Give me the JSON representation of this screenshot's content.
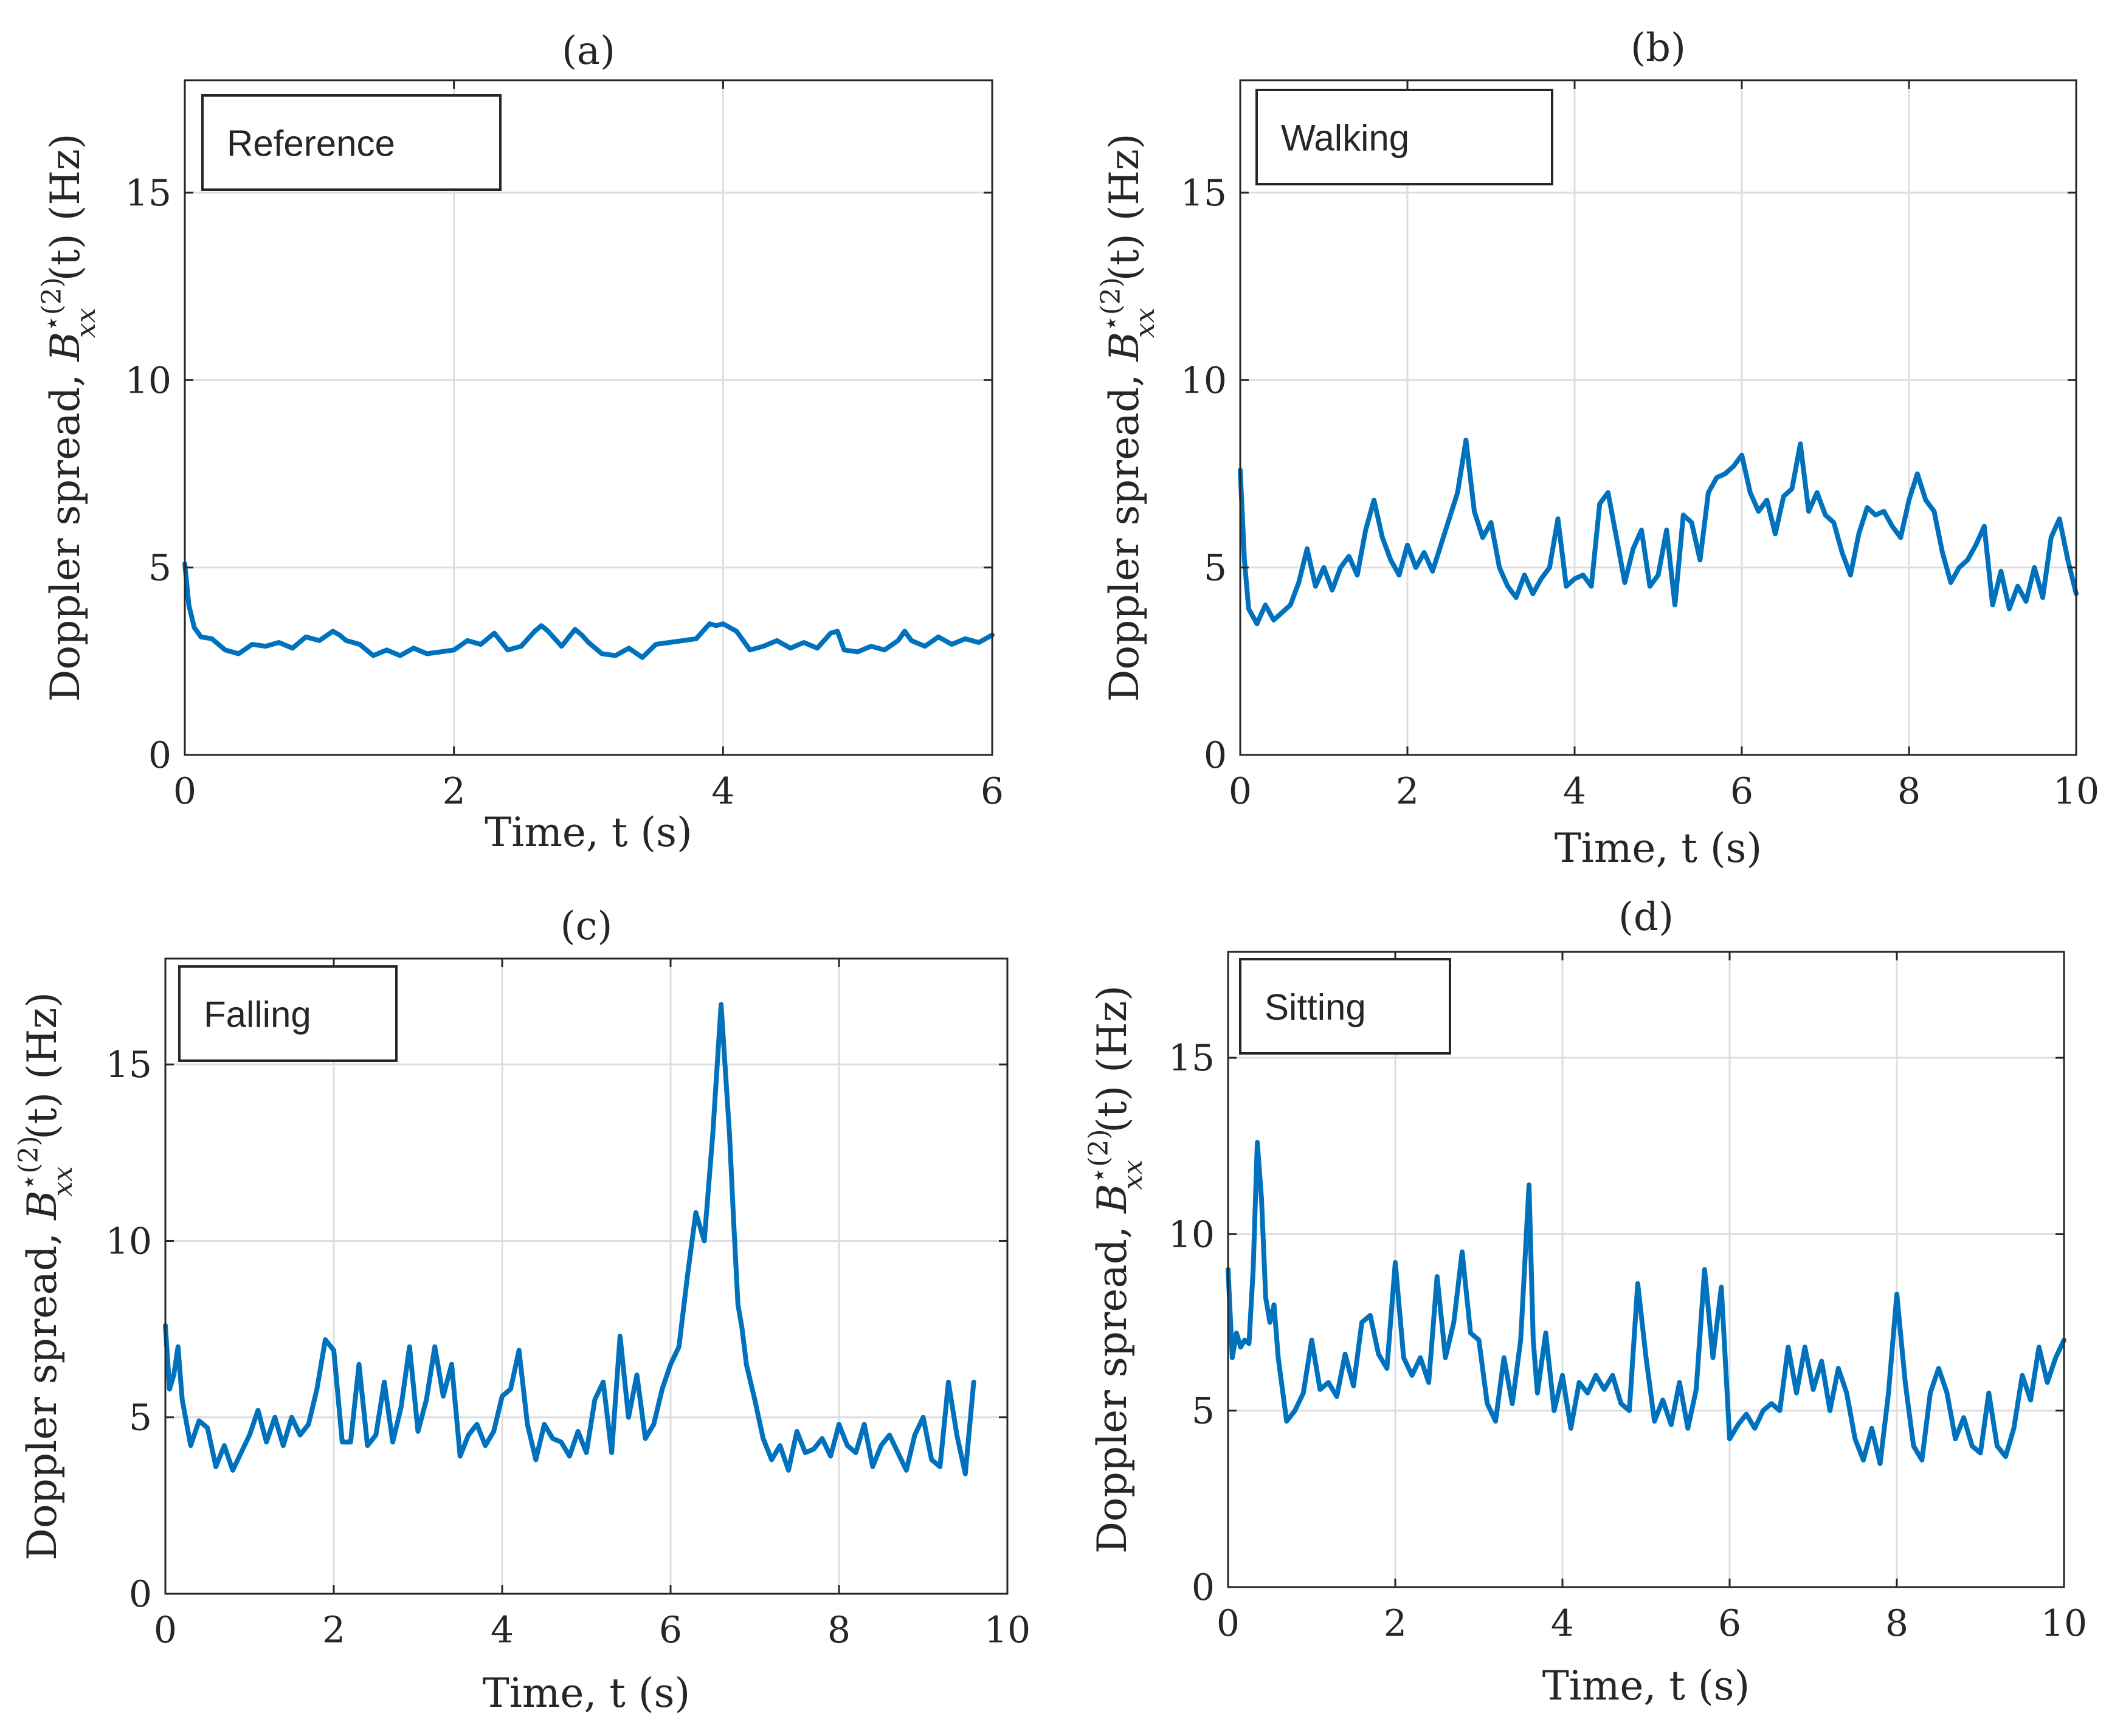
{
  "figure": {
    "y_label_prefix": "Doppler spread, ",
    "y_label_symbol": "B",
    "y_label_sup": "⋆(2)",
    "y_label_sub": "xx",
    "y_label_suffix": "(t) (Hz)",
    "series_color": "#0072BD",
    "grid_color": "#dedede",
    "axis_color": "#262626"
  },
  "chart_data": [
    {
      "type": "line",
      "title": "(a)",
      "legend": "Reference",
      "xlabel": "Time, t (s)",
      "ylabel": "Doppler spread, B_xx^{⋆(2)}(t) (Hz)",
      "xlim": [
        0,
        6
      ],
      "ylim": [
        0,
        18
      ],
      "xticks": [
        0,
        2,
        4,
        6
      ],
      "yticks": [
        0,
        5,
        10,
        15
      ],
      "grid": true,
      "series": [
        {
          "name": "Reference",
          "x": [
            0,
            0.03,
            0.07,
            0.12,
            0.2,
            0.3,
            0.4,
            0.5,
            0.6,
            0.7,
            0.8,
            0.9,
            1.0,
            1.1,
            1.15,
            1.2,
            1.3,
            1.4,
            1.5,
            1.6,
            1.7,
            1.8,
            1.9,
            2.0,
            2.1,
            2.2,
            2.3,
            2.4,
            2.5,
            2.6,
            2.65,
            2.7,
            2.8,
            2.9,
            2.95,
            3.0,
            3.1,
            3.2,
            3.3,
            3.4,
            3.5,
            3.6,
            3.7,
            3.8,
            3.9,
            3.95,
            4.0,
            4.1,
            4.2,
            4.3,
            4.4,
            4.5,
            4.6,
            4.7,
            4.8,
            4.85,
            4.9,
            5.0,
            5.1,
            5.2,
            5.3,
            5.35,
            5.4,
            5.5,
            5.6,
            5.7,
            5.8,
            5.9,
            6.0
          ],
          "y": [
            5.1,
            4.0,
            3.4,
            3.15,
            3.1,
            2.8,
            2.7,
            2.95,
            2.9,
            3.0,
            2.85,
            3.15,
            3.05,
            3.3,
            3.2,
            3.05,
            2.95,
            2.65,
            2.8,
            2.65,
            2.85,
            2.7,
            2.75,
            2.8,
            3.05,
            2.95,
            3.25,
            2.8,
            2.9,
            3.3,
            3.45,
            3.3,
            2.9,
            3.35,
            3.2,
            3.0,
            2.7,
            2.65,
            2.85,
            2.6,
            2.95,
            3.0,
            3.05,
            3.1,
            3.5,
            3.45,
            3.5,
            3.3,
            2.8,
            2.9,
            3.05,
            2.85,
            3.0,
            2.85,
            3.25,
            3.3,
            2.8,
            2.75,
            2.9,
            2.8,
            3.05,
            3.3,
            3.05,
            2.9,
            3.15,
            2.95,
            3.1,
            3.0,
            3.2
          ]
        }
      ]
    },
    {
      "type": "line",
      "title": "(b)",
      "legend": "Walking",
      "xlabel": "Time, t (s)",
      "ylabel": "Doppler spread, B_xx^{⋆(2)}(t) (Hz)",
      "xlim": [
        0,
        10
      ],
      "ylim": [
        0,
        18
      ],
      "xticks": [
        0,
        2,
        4,
        6,
        8,
        10
      ],
      "yticks": [
        0,
        5,
        10,
        15
      ],
      "grid": true,
      "series": [
        {
          "name": "Walking",
          "x": [
            0,
            0.05,
            0.1,
            0.2,
            0.3,
            0.4,
            0.5,
            0.6,
            0.7,
            0.8,
            0.9,
            1.0,
            1.1,
            1.2,
            1.3,
            1.4,
            1.5,
            1.6,
            1.7,
            1.8,
            1.9,
            2.0,
            2.1,
            2.2,
            2.3,
            2.4,
            2.5,
            2.6,
            2.7,
            2.8,
            2.9,
            3.0,
            3.1,
            3.2,
            3.3,
            3.4,
            3.5,
            3.6,
            3.7,
            3.8,
            3.9,
            4.0,
            4.1,
            4.2,
            4.3,
            4.4,
            4.5,
            4.6,
            4.7,
            4.8,
            4.9,
            5.0,
            5.1,
            5.2,
            5.3,
            5.4,
            5.5,
            5.6,
            5.7,
            5.8,
            5.9,
            6.0,
            6.1,
            6.2,
            6.3,
            6.4,
            6.5,
            6.6,
            6.7,
            6.8,
            6.9,
            7.0,
            7.1,
            7.2,
            7.3,
            7.4,
            7.5,
            7.6,
            7.7,
            7.8,
            7.9,
            8.0,
            8.1,
            8.2,
            8.3,
            8.4,
            8.5,
            8.6,
            8.7,
            8.8,
            8.9,
            9.0,
            9.1,
            9.2,
            9.3,
            9.4,
            9.5,
            9.6,
            9.7,
            9.8,
            9.9,
            10.0
          ],
          "y": [
            7.6,
            5.2,
            3.9,
            3.5,
            4.0,
            3.6,
            3.8,
            4.0,
            4.6,
            5.5,
            4.5,
            5.0,
            4.4,
            5.0,
            5.3,
            4.8,
            6.0,
            6.8,
            5.8,
            5.2,
            4.8,
            5.6,
            5.0,
            5.4,
            4.9,
            5.6,
            6.3,
            7.0,
            8.4,
            6.5,
            5.8,
            6.2,
            5.0,
            4.5,
            4.2,
            4.8,
            4.3,
            4.7,
            5.0,
            6.3,
            4.5,
            4.7,
            4.8,
            4.5,
            6.7,
            7.0,
            5.8,
            4.6,
            5.5,
            6.0,
            4.5,
            4.8,
            6.0,
            4.0,
            6.4,
            6.2,
            5.2,
            7.0,
            7.4,
            7.5,
            7.7,
            8.0,
            7.0,
            6.5,
            6.8,
            5.9,
            6.9,
            7.1,
            8.3,
            6.5,
            7.0,
            6.4,
            6.2,
            5.4,
            4.8,
            5.9,
            6.6,
            6.4,
            6.5,
            6.1,
            5.8,
            6.8,
            7.5,
            6.8,
            6.5,
            5.4,
            4.6,
            5.0,
            5.2,
            5.6,
            6.1,
            4.0,
            4.9,
            3.9,
            4.5,
            4.1,
            5.0,
            4.2,
            5.8,
            6.3,
            5.2,
            4.3
          ]
        }
      ]
    },
    {
      "type": "line",
      "title": "(c)",
      "legend": "Falling",
      "xlabel": "Time, t (s)",
      "ylabel": "Doppler spread, B_xx^{⋆(2)}(t) (Hz)",
      "xlim": [
        0,
        10
      ],
      "ylim": [
        0,
        18
      ],
      "xticks": [
        0,
        2,
        4,
        6,
        8,
        10
      ],
      "yticks": [
        0,
        5,
        10,
        15
      ],
      "grid": true,
      "series": [
        {
          "name": "Falling",
          "x": [
            0,
            0.05,
            0.1,
            0.15,
            0.2,
            0.3,
            0.4,
            0.5,
            0.6,
            0.7,
            0.8,
            0.9,
            1.0,
            1.1,
            1.2,
            1.3,
            1.4,
            1.5,
            1.6,
            1.7,
            1.8,
            1.9,
            2.0,
            2.1,
            2.2,
            2.3,
            2.4,
            2.5,
            2.6,
            2.7,
            2.8,
            2.9,
            3.0,
            3.1,
            3.2,
            3.3,
            3.4,
            3.5,
            3.6,
            3.7,
            3.8,
            3.9,
            4.0,
            4.1,
            4.2,
            4.3,
            4.4,
            4.5,
            4.6,
            4.7,
            4.8,
            4.9,
            5.0,
            5.1,
            5.2,
            5.3,
            5.4,
            5.5,
            5.6,
            5.7,
            5.8,
            5.9,
            6.0,
            6.1,
            6.2,
            6.3,
            6.4,
            6.5,
            6.6,
            6.7,
            6.75,
            6.8,
            6.85,
            6.9,
            7.0,
            7.1,
            7.2,
            7.3,
            7.4,
            7.5,
            7.6,
            7.7,
            7.8,
            7.9,
            8.0,
            8.1,
            8.2,
            8.3,
            8.4,
            8.5,
            8.6,
            8.7,
            8.8,
            8.9,
            9.0,
            9.1,
            9.2,
            9.3,
            9.4,
            9.5,
            9.6
          ],
          "y": [
            7.6,
            5.8,
            6.2,
            7.0,
            5.5,
            4.2,
            4.9,
            4.7,
            3.6,
            4.2,
            3.5,
            4.0,
            4.5,
            5.2,
            4.3,
            5.0,
            4.2,
            5.0,
            4.5,
            4.8,
            5.8,
            7.2,
            6.9,
            4.3,
            4.3,
            6.5,
            4.2,
            4.5,
            6.0,
            4.3,
            5.3,
            7.0,
            4.6,
            5.5,
            7.0,
            5.6,
            6.5,
            3.9,
            4.5,
            4.8,
            4.2,
            4.6,
            5.6,
            5.8,
            6.9,
            4.8,
            3.8,
            4.8,
            4.4,
            4.3,
            3.9,
            4.6,
            4.0,
            5.5,
            6.0,
            4.0,
            7.3,
            5.0,
            6.2,
            4.4,
            4.8,
            5.8,
            6.5,
            7.0,
            9.0,
            10.8,
            10.0,
            13.0,
            16.7,
            13.0,
            10.5,
            8.2,
            7.5,
            6.5,
            5.5,
            4.4,
            3.8,
            4.2,
            3.5,
            4.6,
            4.0,
            4.1,
            4.4,
            3.9,
            4.8,
            4.2,
            4.0,
            4.8,
            3.6,
            4.2,
            4.5,
            4.0,
            3.5,
            4.5,
            5.0,
            3.8,
            3.6,
            6.0,
            4.5,
            3.4,
            6.0
          ]
        }
      ]
    },
    {
      "type": "line",
      "title": "(d)",
      "legend": "Sitting",
      "xlabel": "Time, t (s)",
      "ylabel": "Doppler spread, B_xx^{⋆(2)}(t) (Hz)",
      "xlim": [
        0,
        10
      ],
      "ylim": [
        0,
        18
      ],
      "xticks": [
        0,
        2,
        4,
        6,
        8,
        10
      ],
      "yticks": [
        0,
        5,
        10,
        15
      ],
      "grid": true,
      "series": [
        {
          "name": "Sitting",
          "x": [
            0,
            0.05,
            0.1,
            0.15,
            0.2,
            0.25,
            0.3,
            0.35,
            0.4,
            0.45,
            0.5,
            0.55,
            0.6,
            0.7,
            0.8,
            0.9,
            1.0,
            1.1,
            1.2,
            1.3,
            1.4,
            1.5,
            1.6,
            1.7,
            1.8,
            1.9,
            2.0,
            2.1,
            2.2,
            2.3,
            2.4,
            2.5,
            2.6,
            2.7,
            2.8,
            2.9,
            3.0,
            3.1,
            3.2,
            3.3,
            3.4,
            3.5,
            3.6,
            3.65,
            3.7,
            3.8,
            3.9,
            4.0,
            4.1,
            4.2,
            4.3,
            4.4,
            4.5,
            4.6,
            4.7,
            4.8,
            4.9,
            5.0,
            5.1,
            5.2,
            5.3,
            5.4,
            5.5,
            5.6,
            5.7,
            5.8,
            5.9,
            6.0,
            6.1,
            6.2,
            6.3,
            6.4,
            6.5,
            6.6,
            6.7,
            6.8,
            6.9,
            7.0,
            7.1,
            7.2,
            7.3,
            7.4,
            7.5,
            7.6,
            7.7,
            7.8,
            7.9,
            8.0,
            8.1,
            8.2,
            8.3,
            8.4,
            8.5,
            8.6,
            8.7,
            8.8,
            8.9,
            9.0,
            9.1,
            9.2,
            9.3,
            9.4,
            9.5,
            9.6,
            9.7,
            9.8,
            9.9,
            10.0
          ],
          "y": [
            9.0,
            6.5,
            7.2,
            6.8,
            7.0,
            6.9,
            9.0,
            12.6,
            11.0,
            8.2,
            7.5,
            8.0,
            6.5,
            4.7,
            5.0,
            5.5,
            7.0,
            5.6,
            5.8,
            5.4,
            6.6,
            5.7,
            7.5,
            7.7,
            6.6,
            6.2,
            9.2,
            6.5,
            6.0,
            6.5,
            5.8,
            8.8,
            6.5,
            7.5,
            9.5,
            7.2,
            7.0,
            5.2,
            4.7,
            6.5,
            5.2,
            7.0,
            11.4,
            7.0,
            5.5,
            7.2,
            5.0,
            6.0,
            4.5,
            5.8,
            5.5,
            6.0,
            5.6,
            6.0,
            5.2,
            5.0,
            8.6,
            6.5,
            4.7,
            5.3,
            4.6,
            5.8,
            4.5,
            5.6,
            9.0,
            6.5,
            8.5,
            4.2,
            4.6,
            4.9,
            4.5,
            5.0,
            5.2,
            5.0,
            6.8,
            5.5,
            6.8,
            5.6,
            6.4,
            5.0,
            6.2,
            5.5,
            4.2,
            3.6,
            4.5,
            3.5,
            5.5,
            8.3,
            5.8,
            4.0,
            3.6,
            5.5,
            6.2,
            5.5,
            4.2,
            4.8,
            4.0,
            3.8,
            5.5,
            4.0,
            3.7,
            4.5,
            6.0,
            5.3,
            6.8,
            5.8,
            6.5,
            7.0
          ]
        }
      ]
    }
  ]
}
